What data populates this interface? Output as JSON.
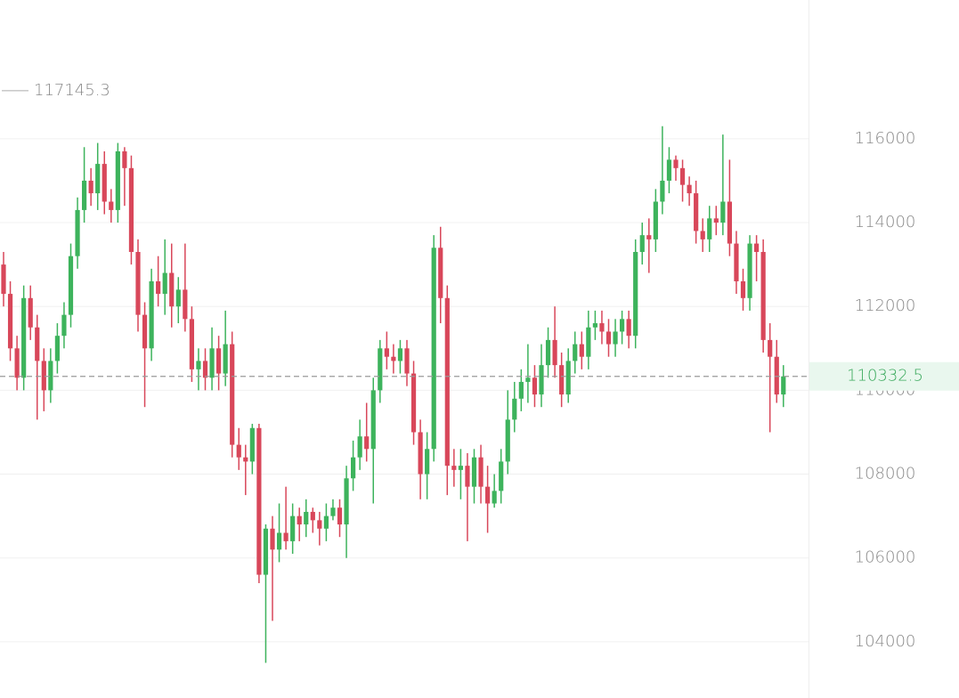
{
  "chart_data": {
    "type": "candlestick",
    "open": [
      113000,
      112300,
      111000,
      110300,
      112200,
      111500,
      110700,
      110000,
      110700,
      111300,
      111800,
      113200,
      114300,
      115000,
      114700,
      115400,
      114500,
      114300,
      115700,
      115300,
      113300,
      111800,
      111000,
      112600,
      112300,
      112800,
      112000,
      112400,
      111700,
      110500,
      110700,
      110300,
      111000,
      110400,
      111100,
      108700,
      108400,
      108300,
      109100,
      105600,
      106700,
      106200,
      106600,
      106400,
      107000,
      106800,
      107100,
      106900,
      106700,
      107000,
      107200,
      106800,
      107900,
      108400,
      108900,
      108600,
      110000,
      111000,
      110800,
      110700,
      111000,
      110400,
      109000,
      108000,
      108600,
      113400,
      112200,
      108200,
      108100,
      108200,
      107700,
      108400,
      107700,
      107300,
      107600,
      108300,
      109300,
      109800,
      110200,
      110300,
      109900,
      110600,
      111200,
      110600,
      109900,
      110700,
      111100,
      110800,
      111500,
      111600,
      111400,
      111100,
      111400,
      111700,
      111300,
      113300,
      113700,
      113600,
      114500,
      115000,
      115500,
      115300,
      114900,
      114700,
      113800,
      113600,
      114100,
      114000,
      114500,
      113500,
      112600,
      112200,
      113500,
      113300,
      111200,
      110800,
      109900
    ],
    "high": [
      113300,
      112600,
      111300,
      112500,
      112500,
      111800,
      111000,
      111000,
      111600,
      112100,
      113500,
      114600,
      115800,
      115300,
      115900,
      115700,
      114800,
      115900,
      115800,
      115600,
      113600,
      112100,
      112900,
      113200,
      113600,
      113500,
      112700,
      113500,
      112000,
      111000,
      111000,
      111500,
      111300,
      111900,
      111400,
      109100,
      108700,
      109200,
      109200,
      106800,
      107000,
      107300,
      107700,
      107300,
      107200,
      107400,
      107200,
      107100,
      107300,
      107400,
      107400,
      108200,
      108800,
      109300,
      109700,
      110300,
      111200,
      111400,
      111100,
      111200,
      111200,
      110700,
      109300,
      109000,
      113700,
      113900,
      112500,
      108600,
      108600,
      108500,
      108600,
      108700,
      108200,
      108000,
      108600,
      110000,
      110200,
      110500,
      111100,
      110600,
      111100,
      111500,
      112000,
      110900,
      111000,
      111400,
      111400,
      111900,
      111900,
      111900,
      111700,
      111700,
      111900,
      111900,
      113600,
      114000,
      114100,
      114800,
      116300,
      115800,
      115600,
      115500,
      115100,
      115000,
      114100,
      114400,
      114400,
      116100,
      115500,
      113800,
      112900,
      113700,
      113700,
      113600,
      111600,
      111200,
      110600
    ],
    "low": [
      112000,
      110700,
      110000,
      110000,
      111200,
      109300,
      109500,
      109700,
      110400,
      111000,
      111500,
      112900,
      114000,
      114400,
      114300,
      114200,
      114000,
      114000,
      114400,
      113000,
      111400,
      109600,
      110700,
      112000,
      111800,
      111500,
      111600,
      111400,
      110200,
      110000,
      110000,
      110000,
      110000,
      110100,
      108400,
      108100,
      107500,
      108000,
      105400,
      103500,
      104500,
      105900,
      106200,
      106100,
      106400,
      106500,
      106600,
      106300,
      106400,
      106900,
      106500,
      106000,
      107600,
      108100,
      108300,
      107300,
      109700,
      110500,
      110400,
      110400,
      110100,
      108700,
      107400,
      107400,
      108300,
      111600,
      107500,
      107700,
      107400,
      106400,
      107300,
      107300,
      106600,
      107200,
      107300,
      108000,
      109000,
      109500,
      109700,
      109600,
      109600,
      110300,
      110300,
      109600,
      109700,
      110400,
      110500,
      110500,
      111200,
      111100,
      110800,
      110800,
      111100,
      111000,
      111000,
      113000,
      112800,
      113300,
      114200,
      114700,
      115000,
      114500,
      114400,
      113500,
      113300,
      113300,
      113700,
      113700,
      113200,
      112300,
      111900,
      111900,
      112600,
      110900,
      109000,
      109700,
      109600
    ],
    "close": [
      112300,
      111000,
      110300,
      112200,
      111500,
      110700,
      110000,
      110700,
      111300,
      111800,
      113200,
      114300,
      115000,
      114700,
      115400,
      114500,
      114300,
      115700,
      115300,
      113300,
      111800,
      111000,
      112600,
      112300,
      112800,
      112000,
      112400,
      111700,
      110500,
      110700,
      110300,
      111000,
      110400,
      111100,
      108700,
      108400,
      108300,
      109100,
      105600,
      106700,
      106200,
      106600,
      106400,
      107000,
      106800,
      107100,
      106900,
      106700,
      107000,
      107200,
      106800,
      107900,
      108400,
      108900,
      108600,
      110000,
      111000,
      110800,
      110700,
      111000,
      110400,
      109000,
      108000,
      108600,
      113400,
      112200,
      108200,
      108100,
      108200,
      107700,
      108400,
      107700,
      107300,
      107600,
      108300,
      109300,
      109800,
      110200,
      110300,
      109900,
      110600,
      111200,
      110600,
      109900,
      110700,
      111100,
      110800,
      111500,
      111600,
      111400,
      111100,
      111400,
      111700,
      111300,
      113300,
      113700,
      113600,
      114500,
      115000,
      115500,
      115300,
      114900,
      114700,
      113800,
      113600,
      114100,
      114000,
      114500,
      113500,
      112600,
      112200,
      113500,
      113300,
      111200,
      110800,
      109900,
      110332.5
    ],
    "up_color": "#3db35c",
    "down_color": "#d8475a",
    "max_marker": 117145.3,
    "ylim": [
      102660,
      119310
    ],
    "yticks": [
      104000,
      106000,
      108000,
      110000,
      112000,
      114000,
      116000
    ],
    "grid": true
  }
}
